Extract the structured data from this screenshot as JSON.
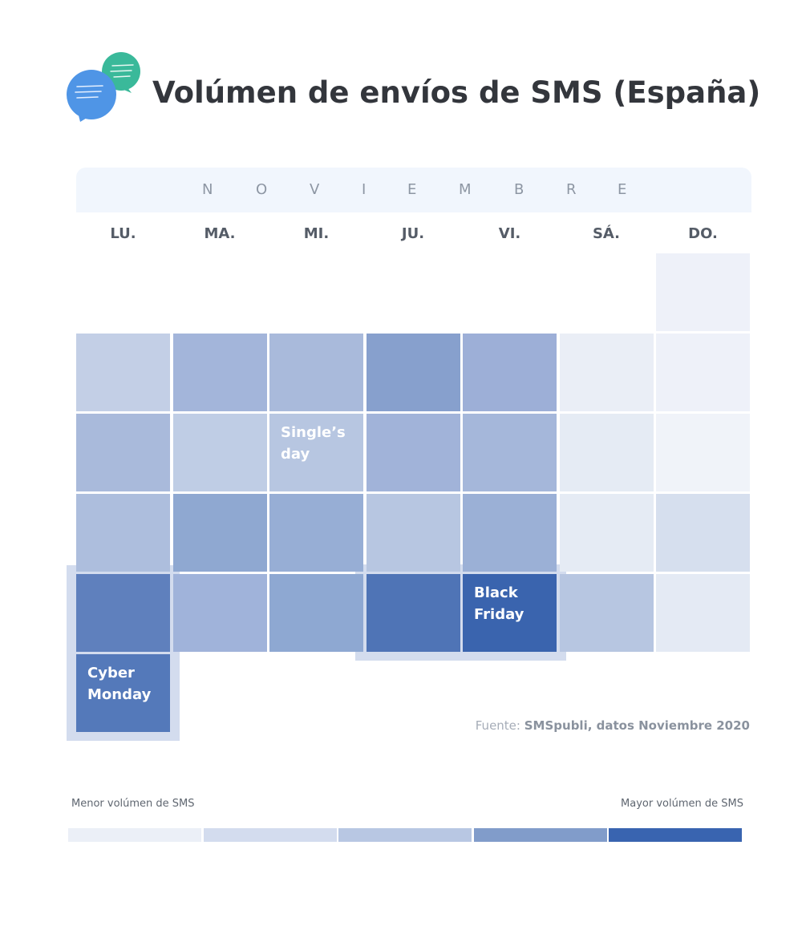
{
  "header": {
    "title": "Volúmen de envíos de SMS (España)",
    "logo_icon": "chat-bubbles-icon",
    "logo_colors": {
      "front": "#4f95e6",
      "back": "#3ab99a"
    }
  },
  "calendar": {
    "month_letters": [
      "N",
      "O",
      "V",
      "I",
      "E",
      "M",
      "B",
      "R",
      "E"
    ],
    "weekdays": [
      "LU.",
      "MA.",
      "MI.",
      "JU.",
      "VI.",
      "SÁ.",
      "DO."
    ]
  },
  "source": {
    "prefix": "Fuente:",
    "text": "SMSpubli, datos Noviembre 2020"
  },
  "legend": {
    "low_label": "Menor volúmen de SMS",
    "high_label": "Mayor volúmen de SMS",
    "levels": [
      "#ebeff7",
      "#d3dcee",
      "#b8c7e3",
      "#819cca",
      "#3964b0"
    ]
  },
  "chart_data": {
    "type": "heatmap",
    "title": "Volúmen de envíos de SMS (España)",
    "subtitle": "NOVIEMBRE",
    "columns": [
      "LU.",
      "MA.",
      "MI.",
      "JU.",
      "VI.",
      "SÁ.",
      "DO."
    ],
    "scale": {
      "min_label": "Menor volúmen de SMS",
      "max_label": "Mayor volúmen de SMS",
      "range": [
        0,
        1
      ]
    },
    "weeks": [
      [
        null,
        null,
        null,
        null,
        null,
        null,
        0.05
      ],
      [
        0.3,
        0.45,
        0.42,
        0.6,
        0.47,
        0.08,
        0.05
      ],
      [
        0.42,
        0.32,
        0.35,
        0.46,
        0.43,
        0.1,
        0.04
      ],
      [
        0.4,
        0.55,
        0.52,
        0.35,
        0.5,
        0.1,
        0.18
      ],
      [
        0.8,
        0.45,
        0.55,
        0.85,
        1.0,
        0.35,
        0.1
      ],
      [
        0.85,
        null,
        null,
        null,
        null,
        null,
        null
      ]
    ],
    "colors": [
      [
        null,
        null,
        null,
        null,
        null,
        null,
        "#eef1f9"
      ],
      [
        "#c3cfe6",
        "#a3b5da",
        "#a9badb",
        "#87a0cd",
        "#9dafd7",
        "#eaeef6",
        "#eef1f9"
      ],
      [
        "#a9badb",
        "#bfcde5",
        "#b7c6e1",
        "#a1b3d9",
        "#a5b7da",
        "#e5ebf4",
        "#f0f3f9"
      ],
      [
        "#adbedd",
        "#8fa8d1",
        "#97aed5",
        "#b7c6e1",
        "#9bb0d6",
        "#e5ebf4",
        "#d6dfee"
      ],
      [
        "#5f80bd",
        "#a0b3da",
        "#8ea8d2",
        "#4f74b6",
        "#3a64ae",
        "#b7c6e1",
        "#e4eaf4"
      ],
      [
        "#5479ba",
        null,
        null,
        null,
        null,
        null,
        null
      ]
    ],
    "annotations": [
      {
        "week": 2,
        "day": 2,
        "text": "Single’s day"
      },
      {
        "week": 4,
        "day": 4,
        "text": "Black Friday"
      },
      {
        "week": 5,
        "day": 0,
        "text": "Cyber Monday"
      }
    ]
  }
}
